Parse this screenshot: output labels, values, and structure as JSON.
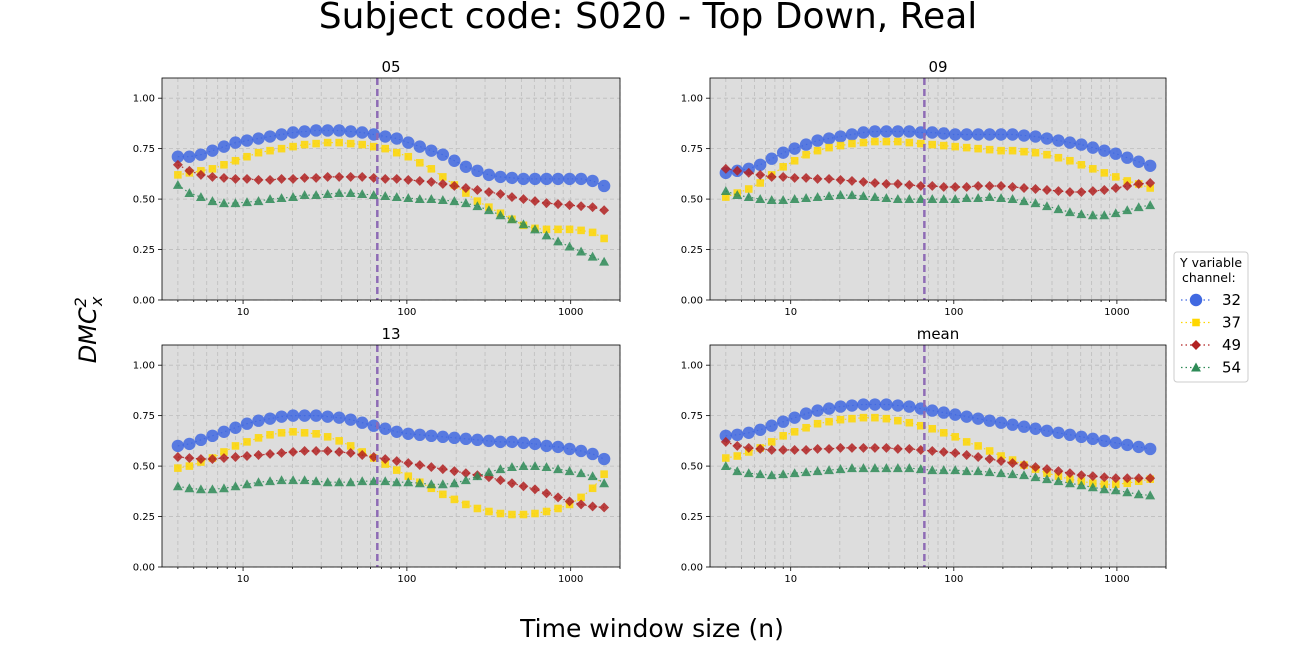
{
  "figure": {
    "suptitle": "Subject code: S020 - Top Down, Real",
    "xlabel": "Time window size (n)",
    "ylabel_base": "DMC",
    "ylabel_sup": "2",
    "ylabel_sub": "x"
  },
  "legend": {
    "title_line1": "Y variable",
    "title_line2": "channel:",
    "placement": "right-center"
  },
  "series_styles": [
    {
      "name": "32",
      "color": "#4169e1",
      "marker": "circle"
    },
    {
      "name": "37",
      "color": "#ffd700",
      "marker": "square"
    },
    {
      "name": "49",
      "color": "#b22222",
      "marker": "diamond"
    },
    {
      "name": "54",
      "color": "#2e8b57",
      "marker": "triangle"
    }
  ],
  "chart_data": [
    {
      "type": "scatter",
      "title": "05",
      "xscale": "log",
      "xlim": [
        3.2,
        2000
      ],
      "ylim": [
        0,
        1.1
      ],
      "xticks": [
        "10",
        "100",
        "1000"
      ],
      "yticks": [
        "0.00",
        "0.25",
        "0.50",
        "0.75",
        "1.00"
      ],
      "grid": true,
      "vline_x": 66,
      "series": [
        {
          "name": "32",
          "y": [
            0.71,
            0.71,
            0.72,
            0.74,
            0.76,
            0.78,
            0.79,
            0.8,
            0.81,
            0.82,
            0.83,
            0.835,
            0.84,
            0.84,
            0.84,
            0.835,
            0.83,
            0.82,
            0.81,
            0.8,
            0.78,
            0.76,
            0.74,
            0.72,
            0.69,
            0.66,
            0.64,
            0.62,
            0.61,
            0.605,
            0.6,
            0.6,
            0.6,
            0.6,
            0.6,
            0.6,
            0.59,
            0.565
          ]
        },
        {
          "name": "37",
          "y": [
            0.62,
            0.63,
            0.64,
            0.65,
            0.67,
            0.69,
            0.71,
            0.73,
            0.74,
            0.75,
            0.76,
            0.77,
            0.775,
            0.78,
            0.78,
            0.775,
            0.77,
            0.76,
            0.75,
            0.73,
            0.71,
            0.68,
            0.65,
            0.61,
            0.57,
            0.53,
            0.49,
            0.46,
            0.43,
            0.4,
            0.37,
            0.355,
            0.35,
            0.35,
            0.35,
            0.345,
            0.335,
            0.305
          ]
        },
        {
          "name": "49",
          "y": [
            0.67,
            0.64,
            0.62,
            0.61,
            0.605,
            0.6,
            0.6,
            0.595,
            0.595,
            0.6,
            0.6,
            0.605,
            0.605,
            0.61,
            0.61,
            0.61,
            0.61,
            0.605,
            0.6,
            0.6,
            0.595,
            0.59,
            0.585,
            0.575,
            0.565,
            0.555,
            0.545,
            0.535,
            0.525,
            0.51,
            0.5,
            0.49,
            0.48,
            0.475,
            0.47,
            0.465,
            0.46,
            0.445
          ]
        },
        {
          "name": "54",
          "y": [
            0.57,
            0.53,
            0.51,
            0.49,
            0.48,
            0.48,
            0.485,
            0.49,
            0.5,
            0.505,
            0.51,
            0.52,
            0.52,
            0.525,
            0.53,
            0.53,
            0.525,
            0.52,
            0.515,
            0.51,
            0.505,
            0.5,
            0.5,
            0.495,
            0.49,
            0.48,
            0.465,
            0.445,
            0.42,
            0.4,
            0.375,
            0.35,
            0.32,
            0.29,
            0.265,
            0.24,
            0.215,
            0.19
          ]
        }
      ]
    },
    {
      "type": "scatter",
      "title": "09",
      "xscale": "log",
      "xlim": [
        3.2,
        2000
      ],
      "ylim": [
        0,
        1.1
      ],
      "xticks": [
        "10",
        "100",
        "1000"
      ],
      "yticks": [
        "0.00",
        "0.25",
        "0.50",
        "0.75",
        "1.00"
      ],
      "grid": true,
      "vline_x": 66,
      "series": [
        {
          "name": "32",
          "y": [
            0.63,
            0.64,
            0.65,
            0.67,
            0.7,
            0.73,
            0.75,
            0.77,
            0.79,
            0.8,
            0.81,
            0.82,
            0.83,
            0.835,
            0.835,
            0.835,
            0.835,
            0.83,
            0.83,
            0.825,
            0.82,
            0.82,
            0.82,
            0.82,
            0.82,
            0.82,
            0.815,
            0.81,
            0.8,
            0.79,
            0.78,
            0.77,
            0.755,
            0.74,
            0.725,
            0.705,
            0.685,
            0.665
          ]
        },
        {
          "name": "37",
          "y": [
            0.51,
            0.53,
            0.55,
            0.58,
            0.62,
            0.66,
            0.69,
            0.72,
            0.74,
            0.755,
            0.765,
            0.775,
            0.78,
            0.785,
            0.785,
            0.785,
            0.78,
            0.775,
            0.77,
            0.765,
            0.76,
            0.755,
            0.75,
            0.745,
            0.74,
            0.74,
            0.735,
            0.73,
            0.72,
            0.705,
            0.69,
            0.67,
            0.65,
            0.63,
            0.61,
            0.59,
            0.575,
            0.555
          ]
        },
        {
          "name": "49",
          "y": [
            0.65,
            0.64,
            0.63,
            0.62,
            0.61,
            0.61,
            0.605,
            0.605,
            0.6,
            0.6,
            0.595,
            0.59,
            0.585,
            0.58,
            0.575,
            0.575,
            0.57,
            0.565,
            0.565,
            0.56,
            0.56,
            0.56,
            0.565,
            0.565,
            0.565,
            0.56,
            0.555,
            0.55,
            0.545,
            0.54,
            0.535,
            0.535,
            0.54,
            0.545,
            0.555,
            0.565,
            0.575,
            0.58
          ]
        },
        {
          "name": "54",
          "y": [
            0.54,
            0.52,
            0.51,
            0.5,
            0.495,
            0.495,
            0.5,
            0.505,
            0.51,
            0.515,
            0.52,
            0.52,
            0.515,
            0.51,
            0.505,
            0.5,
            0.5,
            0.5,
            0.5,
            0.5,
            0.5,
            0.505,
            0.505,
            0.51,
            0.505,
            0.5,
            0.49,
            0.48,
            0.465,
            0.45,
            0.435,
            0.425,
            0.42,
            0.42,
            0.43,
            0.445,
            0.46,
            0.47
          ]
        }
      ]
    },
    {
      "type": "scatter",
      "title": "13",
      "xscale": "log",
      "xlim": [
        3.2,
        2000
      ],
      "ylim": [
        0,
        1.1
      ],
      "xticks": [
        "10",
        "100",
        "1000"
      ],
      "yticks": [
        "0.00",
        "0.25",
        "0.50",
        "0.75",
        "1.00"
      ],
      "grid": true,
      "vline_x": 66,
      "series": [
        {
          "name": "32",
          "y": [
            0.6,
            0.61,
            0.63,
            0.65,
            0.67,
            0.69,
            0.71,
            0.725,
            0.735,
            0.745,
            0.75,
            0.75,
            0.75,
            0.745,
            0.74,
            0.73,
            0.715,
            0.7,
            0.685,
            0.67,
            0.66,
            0.655,
            0.65,
            0.645,
            0.64,
            0.635,
            0.63,
            0.625,
            0.62,
            0.62,
            0.615,
            0.61,
            0.6,
            0.595,
            0.585,
            0.575,
            0.56,
            0.535
          ]
        },
        {
          "name": "37",
          "y": [
            0.49,
            0.5,
            0.52,
            0.54,
            0.57,
            0.6,
            0.62,
            0.64,
            0.655,
            0.665,
            0.67,
            0.665,
            0.66,
            0.645,
            0.625,
            0.6,
            0.57,
            0.54,
            0.51,
            0.48,
            0.45,
            0.42,
            0.39,
            0.36,
            0.335,
            0.31,
            0.29,
            0.275,
            0.265,
            0.26,
            0.26,
            0.265,
            0.275,
            0.29,
            0.31,
            0.345,
            0.39,
            0.46
          ]
        },
        {
          "name": "49",
          "y": [
            0.545,
            0.54,
            0.535,
            0.535,
            0.54,
            0.545,
            0.55,
            0.555,
            0.56,
            0.565,
            0.57,
            0.575,
            0.575,
            0.575,
            0.57,
            0.565,
            0.555,
            0.545,
            0.535,
            0.525,
            0.515,
            0.505,
            0.495,
            0.485,
            0.475,
            0.465,
            0.455,
            0.445,
            0.43,
            0.415,
            0.4,
            0.385,
            0.365,
            0.345,
            0.325,
            0.31,
            0.3,
            0.295
          ]
        },
        {
          "name": "54",
          "y": [
            0.4,
            0.39,
            0.385,
            0.385,
            0.39,
            0.4,
            0.41,
            0.42,
            0.425,
            0.43,
            0.43,
            0.43,
            0.425,
            0.42,
            0.42,
            0.42,
            0.425,
            0.425,
            0.425,
            0.42,
            0.42,
            0.415,
            0.41,
            0.41,
            0.415,
            0.43,
            0.45,
            0.47,
            0.485,
            0.495,
            0.5,
            0.5,
            0.495,
            0.485,
            0.475,
            0.465,
            0.45,
            0.415
          ]
        }
      ]
    },
    {
      "type": "scatter",
      "title": "mean",
      "xscale": "log",
      "xlim": [
        3.2,
        2000
      ],
      "ylim": [
        0,
        1.1
      ],
      "xticks": [
        "10",
        "100",
        "1000"
      ],
      "yticks": [
        "0.00",
        "0.25",
        "0.50",
        "0.75",
        "1.00"
      ],
      "grid": true,
      "vline_x": 66,
      "series": [
        {
          "name": "32",
          "y": [
            0.65,
            0.655,
            0.665,
            0.68,
            0.7,
            0.72,
            0.74,
            0.76,
            0.775,
            0.785,
            0.795,
            0.8,
            0.805,
            0.805,
            0.805,
            0.8,
            0.795,
            0.785,
            0.775,
            0.765,
            0.755,
            0.745,
            0.735,
            0.725,
            0.715,
            0.705,
            0.695,
            0.685,
            0.675,
            0.665,
            0.655,
            0.645,
            0.635,
            0.625,
            0.615,
            0.605,
            0.595,
            0.585
          ]
        },
        {
          "name": "37",
          "y": [
            0.54,
            0.55,
            0.57,
            0.59,
            0.62,
            0.65,
            0.67,
            0.69,
            0.71,
            0.72,
            0.73,
            0.735,
            0.74,
            0.74,
            0.735,
            0.725,
            0.715,
            0.7,
            0.685,
            0.665,
            0.645,
            0.62,
            0.6,
            0.575,
            0.55,
            0.53,
            0.505,
            0.485,
            0.465,
            0.45,
            0.435,
            0.425,
            0.415,
            0.41,
            0.41,
            0.415,
            0.425,
            0.435
          ]
        },
        {
          "name": "49",
          "y": [
            0.62,
            0.6,
            0.59,
            0.585,
            0.58,
            0.58,
            0.58,
            0.58,
            0.585,
            0.585,
            0.59,
            0.59,
            0.59,
            0.59,
            0.59,
            0.585,
            0.585,
            0.58,
            0.575,
            0.57,
            0.565,
            0.555,
            0.545,
            0.535,
            0.525,
            0.515,
            0.505,
            0.495,
            0.485,
            0.475,
            0.465,
            0.455,
            0.45,
            0.445,
            0.44,
            0.44,
            0.44,
            0.44
          ]
        },
        {
          "name": "54",
          "y": [
            0.5,
            0.475,
            0.465,
            0.46,
            0.455,
            0.46,
            0.465,
            0.47,
            0.475,
            0.48,
            0.485,
            0.49,
            0.49,
            0.49,
            0.49,
            0.49,
            0.49,
            0.485,
            0.48,
            0.48,
            0.48,
            0.475,
            0.475,
            0.47,
            0.465,
            0.46,
            0.455,
            0.445,
            0.435,
            0.425,
            0.415,
            0.405,
            0.395,
            0.385,
            0.38,
            0.37,
            0.36,
            0.355
          ]
        }
      ]
    }
  ]
}
